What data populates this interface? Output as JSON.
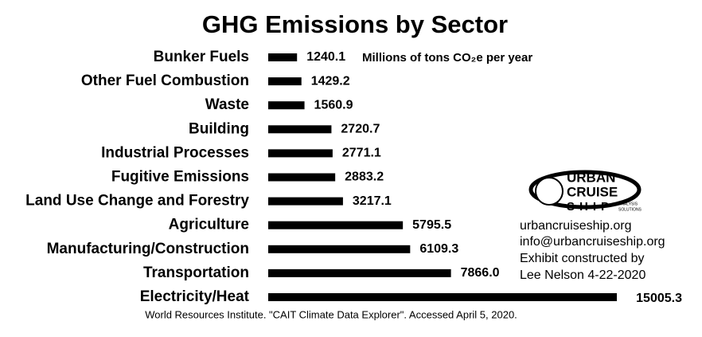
{
  "chart_data": {
    "type": "bar",
    "orientation": "horizontal",
    "title": "GHG Emissions by Sector",
    "categories": [
      "Bunker Fuels",
      "Other Fuel Combustion",
      "Waste",
      "Building",
      "Industrial Processes",
      "Fugitive Emissions",
      "Land Use Change and Forestry",
      "Agriculture",
      "Manufacturing/Construction",
      "Transportation",
      "Electricity/Heat"
    ],
    "values": [
      1240.1,
      1429.2,
      1560.9,
      2720.7,
      2771.1,
      2883.2,
      3217.1,
      5795.5,
      6109.3,
      7866.0,
      15005.3
    ],
    "value_labels": [
      "1240.1",
      "1429.2",
      "1560.9",
      "2720.7",
      "2771.1",
      "2883.2",
      "3217.1",
      "5795.5",
      "6109.3",
      "7866.0",
      "15005.3"
    ],
    "color": "#000000",
    "unit_note": "Millions of tons CO₂e per year",
    "source": "World Resources Institute. \"CAIT Climate Data Explorer\". Accessed April 5, 2020.",
    "logo": {
      "line_1": "URBAN",
      "line_2": "CRUISE",
      "line_3": "SHIP",
      "tagline_1": "ANALYSIS",
      "tagline_2": "SOLUTIONS"
    },
    "credits": [
      "urbancruiseship.org",
      "info@urbancruiseship.org",
      "Exhibit constructed by",
      "Lee Nelson 4-22-2020"
    ]
  }
}
